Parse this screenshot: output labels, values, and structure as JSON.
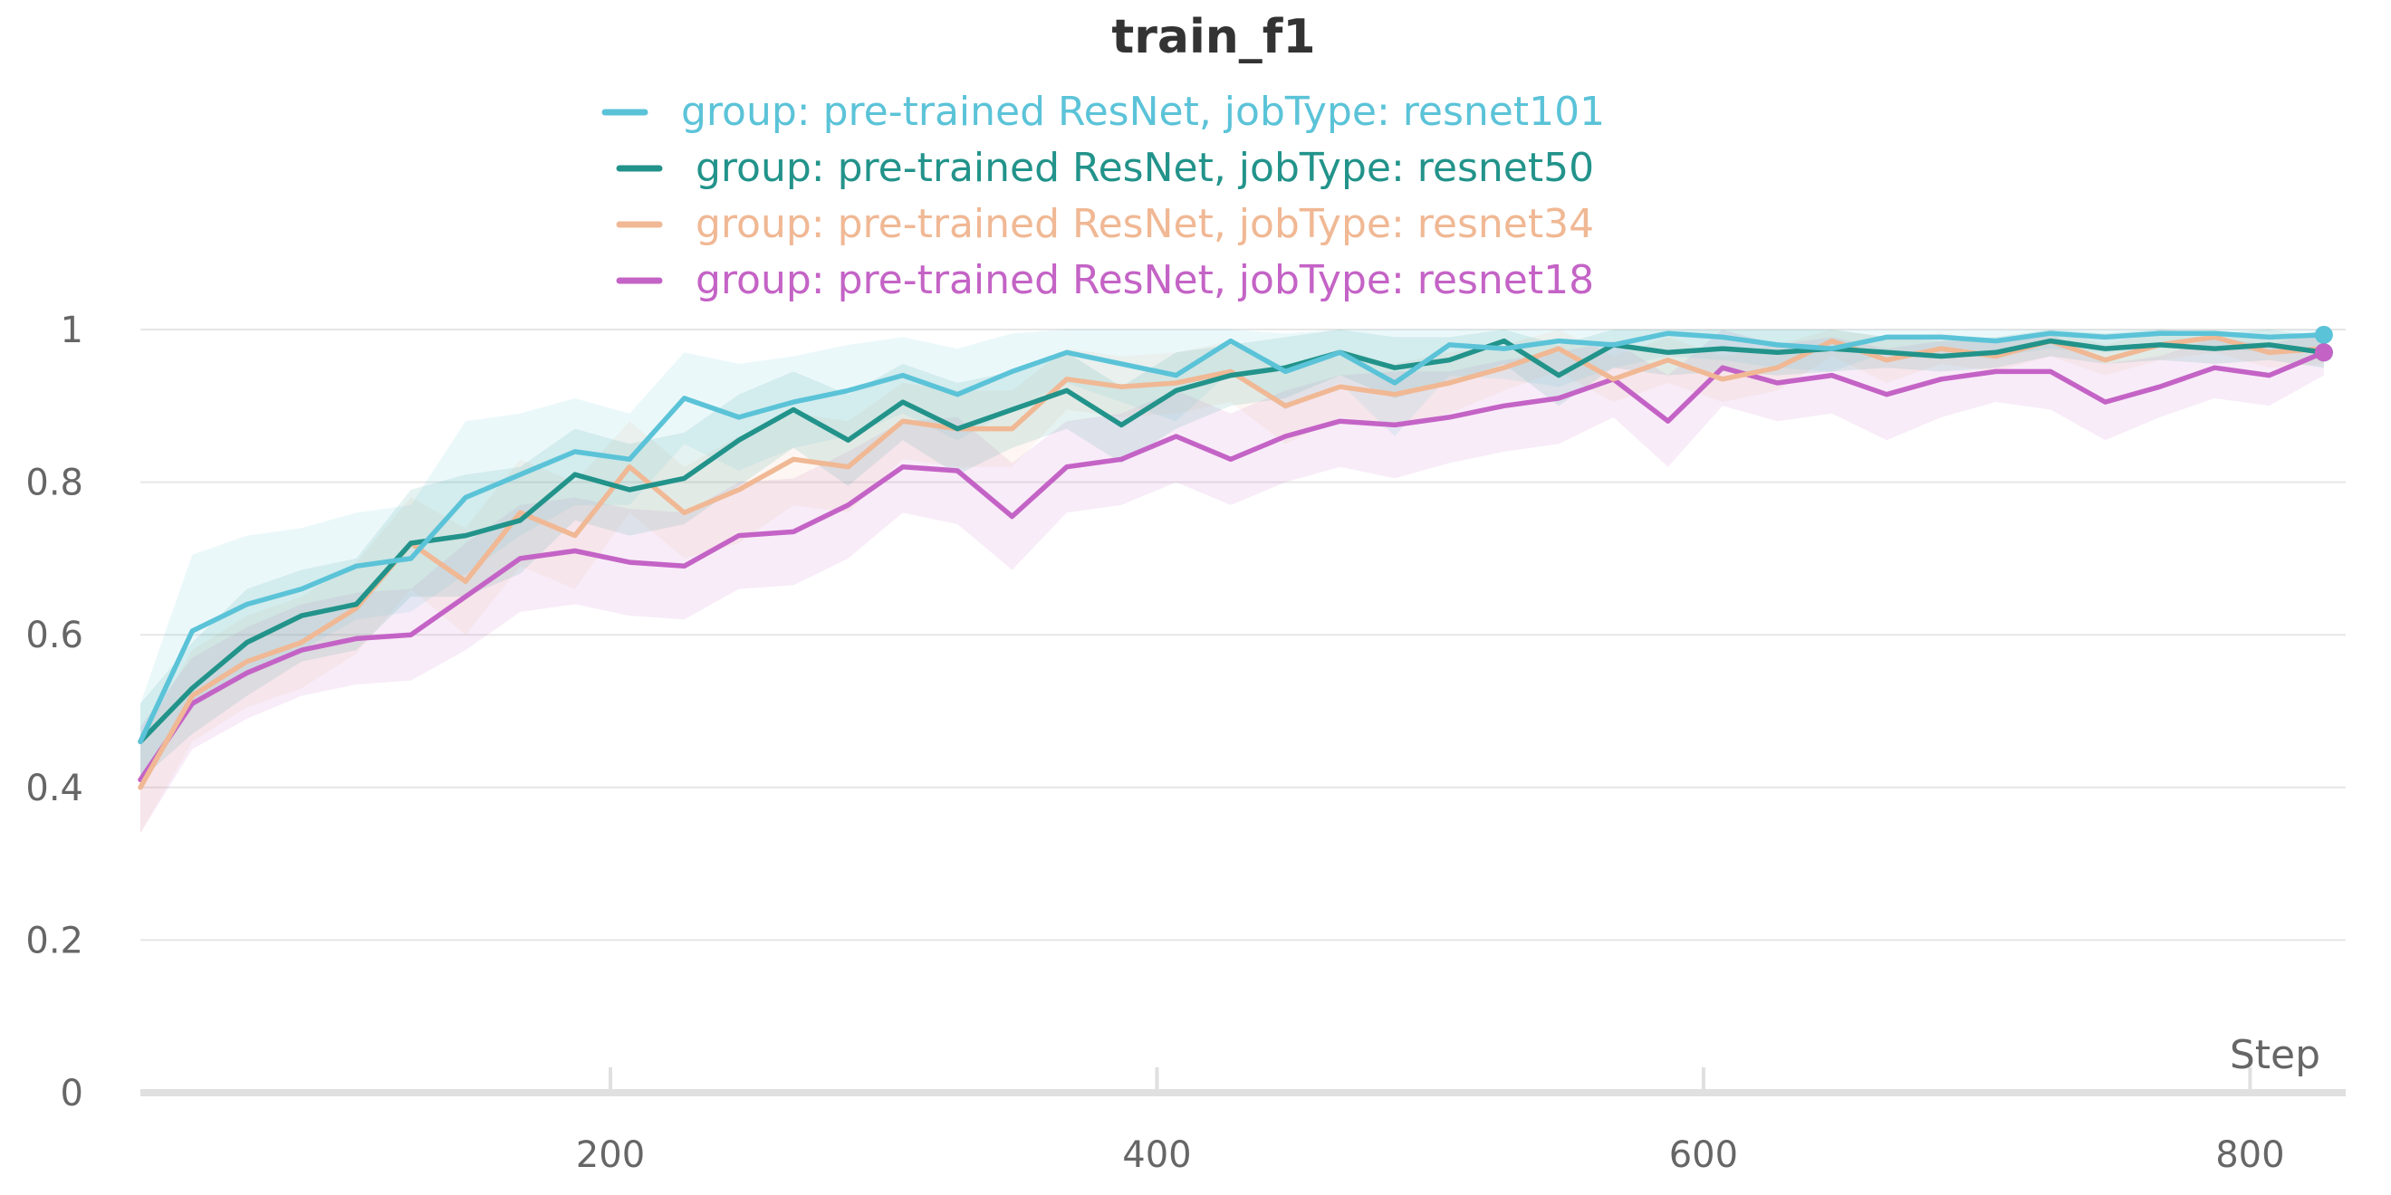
{
  "chart_data": {
    "type": "line",
    "title": "train_f1",
    "xlabel": "Step",
    "ylabel": "",
    "xlim": [
      28,
      835
    ],
    "ylim": [
      0,
      1
    ],
    "x_ticks": [
      200,
      400,
      600,
      800
    ],
    "y_ticks": [
      0,
      0.2,
      0.4,
      0.6,
      0.8,
      1
    ],
    "x_tick_labels": [
      "200",
      "400",
      "600",
      "800"
    ],
    "y_tick_labels": [
      "0",
      "0.2",
      "0.4",
      "0.6",
      "0.8",
      "1"
    ],
    "grid": true,
    "legend_position": "top-center",
    "x": [
      28,
      47,
      67,
      87,
      107,
      127,
      147,
      167,
      187,
      207,
      227,
      247,
      267,
      287,
      307,
      327,
      347,
      367,
      387,
      407,
      427,
      447,
      467,
      487,
      507,
      527,
      547,
      567,
      587,
      607,
      627,
      647,
      667,
      687,
      707,
      727,
      747,
      767,
      787,
      807,
      827
    ],
    "series": [
      {
        "name": "group: pre-trained ResNet, jobType: resnet101",
        "color": "#5bc3d8",
        "values": [
          0.46,
          0.605,
          0.64,
          0.66,
          0.69,
          0.7,
          0.78,
          0.81,
          0.84,
          0.83,
          0.91,
          0.885,
          0.905,
          0.92,
          0.94,
          0.915,
          0.945,
          0.97,
          0.955,
          0.94,
          0.985,
          0.945,
          0.97,
          0.93,
          0.98,
          0.975,
          0.985,
          0.98,
          0.995,
          0.99,
          0.98,
          0.975,
          0.99,
          0.99,
          0.985,
          0.995,
          0.99,
          0.995,
          0.995,
          0.99,
          0.993
        ],
        "band_half_width": [
          0.05,
          0.1,
          0.09,
          0.08,
          0.07,
          0.07,
          0.1,
          0.08,
          0.07,
          0.06,
          0.06,
          0.07,
          0.06,
          0.06,
          0.05,
          0.06,
          0.05,
          0.04,
          0.05,
          0.06,
          0.04,
          0.05,
          0.04,
          0.07,
          0.04,
          0.04,
          0.06,
          0.03,
          0.03,
          0.03,
          0.03,
          0.03,
          0.02,
          0.02,
          0.02,
          0.02,
          0.02,
          0.02,
          0.02,
          0.02,
          0.02
        ]
      },
      {
        "name": "group: pre-trained ResNet, jobType: resnet50",
        "color": "#22938a",
        "values": [
          0.46,
          0.53,
          0.59,
          0.625,
          0.64,
          0.72,
          0.73,
          0.75,
          0.81,
          0.79,
          0.805,
          0.855,
          0.895,
          0.855,
          0.905,
          0.87,
          0.895,
          0.92,
          0.875,
          0.92,
          0.94,
          0.95,
          0.97,
          0.95,
          0.96,
          0.985,
          0.94,
          0.98,
          0.97,
          0.975,
          0.97,
          0.975,
          0.97,
          0.965,
          0.97,
          0.985,
          0.975,
          0.98,
          0.975,
          0.98,
          0.97
        ],
        "band_half_width": [
          0.05,
          0.06,
          0.07,
          0.06,
          0.06,
          0.07,
          0.08,
          0.07,
          0.06,
          0.06,
          0.06,
          0.06,
          0.05,
          0.06,
          0.05,
          0.06,
          0.05,
          0.05,
          0.05,
          0.05,
          0.04,
          0.04,
          0.03,
          0.04,
          0.03,
          0.03,
          0.04,
          0.03,
          0.03,
          0.03,
          0.03,
          0.03,
          0.02,
          0.02,
          0.02,
          0.02,
          0.02,
          0.02,
          0.02,
          0.02,
          0.02
        ]
      },
      {
        "name": "group: pre-trained ResNet, jobType: resnet34",
        "color": "#f0b894",
        "values": [
          0.4,
          0.52,
          0.565,
          0.59,
          0.635,
          0.72,
          0.67,
          0.76,
          0.73,
          0.82,
          0.76,
          0.79,
          0.83,
          0.82,
          0.88,
          0.87,
          0.87,
          0.935,
          0.925,
          0.93,
          0.945,
          0.9,
          0.925,
          0.915,
          0.93,
          0.95,
          0.975,
          0.935,
          0.96,
          0.935,
          0.95,
          0.985,
          0.96,
          0.975,
          0.965,
          0.985,
          0.96,
          0.98,
          0.99,
          0.97,
          0.975
        ],
        "band_half_width": [
          0.06,
          0.06,
          0.06,
          0.06,
          0.06,
          0.06,
          0.07,
          0.07,
          0.07,
          0.06,
          0.06,
          0.07,
          0.06,
          0.06,
          0.05,
          0.05,
          0.05,
          0.04,
          0.04,
          0.04,
          0.04,
          0.05,
          0.04,
          0.04,
          0.04,
          0.03,
          0.03,
          0.03,
          0.03,
          0.03,
          0.03,
          0.02,
          0.03,
          0.02,
          0.02,
          0.02,
          0.02,
          0.02,
          0.02,
          0.02,
          0.02
        ]
      },
      {
        "name": "group: pre-trained ResNet, jobType: resnet18",
        "color": "#c463c6",
        "values": [
          0.41,
          0.51,
          0.55,
          0.58,
          0.595,
          0.6,
          0.65,
          0.7,
          0.71,
          0.695,
          0.69,
          0.73,
          0.735,
          0.77,
          0.82,
          0.815,
          0.755,
          0.82,
          0.83,
          0.86,
          0.83,
          0.86,
          0.88,
          0.875,
          0.885,
          0.9,
          0.91,
          0.935,
          0.88,
          0.95,
          0.93,
          0.94,
          0.915,
          0.935,
          0.945,
          0.945,
          0.905,
          0.925,
          0.95,
          0.94,
          0.97
        ],
        "band_half_width": [
          0.07,
          0.06,
          0.06,
          0.06,
          0.06,
          0.06,
          0.07,
          0.07,
          0.07,
          0.07,
          0.07,
          0.07,
          0.07,
          0.07,
          0.06,
          0.07,
          0.07,
          0.06,
          0.06,
          0.06,
          0.06,
          0.06,
          0.06,
          0.07,
          0.06,
          0.06,
          0.06,
          0.05,
          0.06,
          0.05,
          0.05,
          0.05,
          0.06,
          0.05,
          0.04,
          0.05,
          0.05,
          0.04,
          0.04,
          0.04,
          0.03
        ]
      }
    ]
  }
}
